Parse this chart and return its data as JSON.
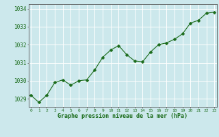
{
  "x": [
    0,
    1,
    2,
    3,
    4,
    5,
    6,
    7,
    8,
    9,
    10,
    11,
    12,
    13,
    14,
    15,
    16,
    17,
    18,
    19,
    20,
    21,
    22,
    23
  ],
  "y": [
    1029.2,
    1028.8,
    1029.2,
    1029.9,
    1030.05,
    1029.75,
    1030.0,
    1030.05,
    1030.6,
    1031.3,
    1031.7,
    1031.95,
    1031.45,
    1031.1,
    1031.05,
    1031.6,
    1032.0,
    1032.1,
    1032.3,
    1032.6,
    1033.2,
    1033.35,
    1033.75,
    1033.8
  ],
  "line_color": "#1a6b1a",
  "marker": "D",
  "marker_size": 2.5,
  "bg_color": "#cce8ec",
  "grid_color": "#ffffff",
  "xlabel": "Graphe pression niveau de la mer (hPa)",
  "xlabel_color": "#1a6b1a",
  "tick_color": "#1a6b1a",
  "ylabel_ticks": [
    1029,
    1030,
    1031,
    1032,
    1033,
    1034
  ],
  "xlim": [
    -0.3,
    23.3
  ],
  "ylim": [
    1028.55,
    1034.25
  ],
  "figsize": [
    3.2,
    2.0
  ],
  "dpi": 100
}
